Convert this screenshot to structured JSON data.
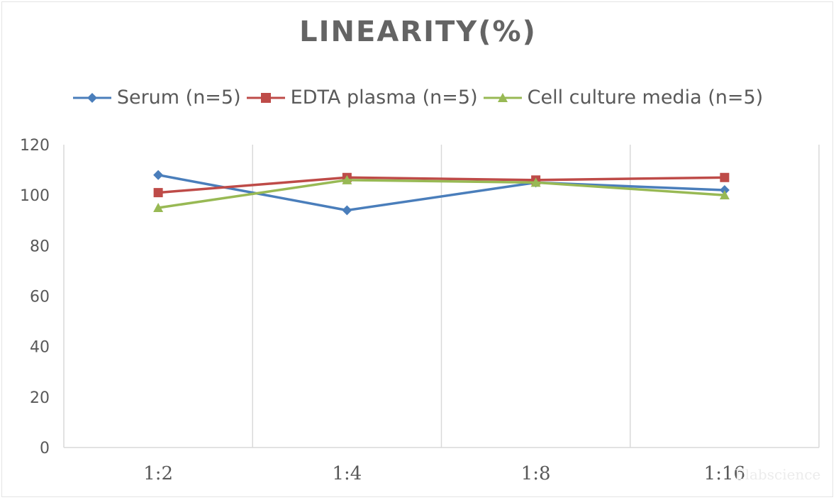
{
  "chart_data": {
    "type": "line",
    "title": "LINEARITY(%)",
    "xlabel": "",
    "ylabel": "",
    "categories": [
      "1:2",
      "1:4",
      "1:8",
      "1:16"
    ],
    "ylim": [
      0,
      120
    ],
    "yticks": [
      0,
      20,
      40,
      60,
      80,
      100,
      120
    ],
    "ytick_labels": [
      "0",
      "20",
      "40",
      "60",
      "80",
      "100",
      "120"
    ],
    "grid": "vertical",
    "legend_position": "top",
    "series": [
      {
        "name": "Serum (n=5)",
        "marker": "diamond",
        "color": "#4a7ebb",
        "values": [
          108,
          94,
          105,
          102
        ]
      },
      {
        "name": "EDTA plasma (n=5)",
        "marker": "square",
        "color": "#be4b48",
        "values": [
          101,
          107,
          106,
          107
        ]
      },
      {
        "name": "Cell culture media (n=5)",
        "marker": "triangle",
        "color": "#98b954",
        "values": [
          95,
          106,
          105,
          100
        ]
      }
    ]
  },
  "watermark": "Elabscience"
}
